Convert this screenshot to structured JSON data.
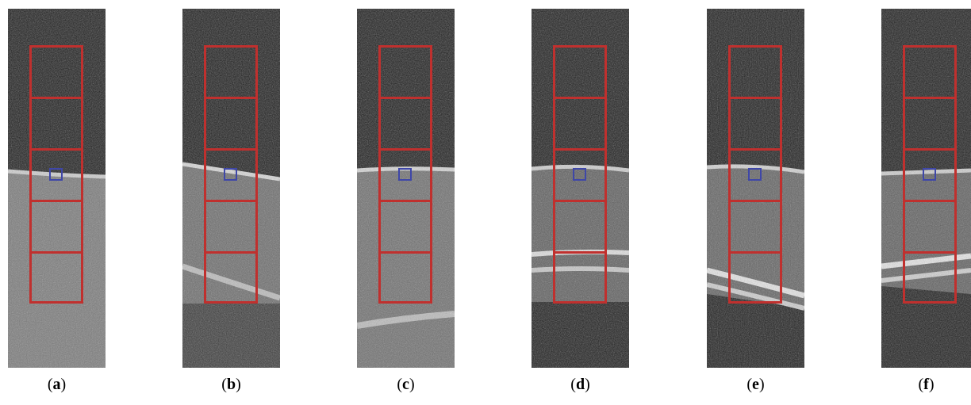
{
  "panels": [
    {
      "id": "a",
      "caption_open": "(",
      "caption_letter": "a",
      "caption_close": ")"
    },
    {
      "id": "b",
      "caption_open": "(",
      "caption_letter": "b",
      "caption_close": ")"
    },
    {
      "id": "c",
      "caption_open": "(",
      "caption_letter": "c",
      "caption_close": ")"
    },
    {
      "id": "d",
      "caption_open": "(",
      "caption_letter": "d",
      "caption_close": ")"
    },
    {
      "id": "e",
      "caption_open": "(",
      "caption_letter": "e",
      "caption_close": ")"
    },
    {
      "id": "f",
      "caption_open": "(",
      "caption_letter": "f",
      "caption_close": ")"
    }
  ],
  "colors": {
    "roi_grid": "#c0302e",
    "roi_small": "#3f47a8",
    "background": "#ffffff"
  }
}
